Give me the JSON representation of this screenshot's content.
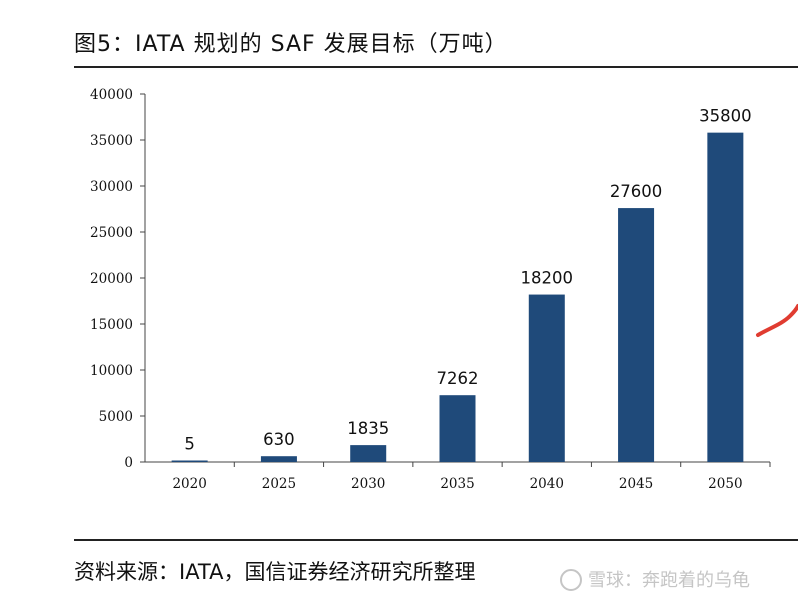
{
  "title": "图5：IATA 规划的 SAF 发展目标（万吨）",
  "source": "资料来源：IATA，国信证券经济研究所整理",
  "watermark": "雪球：奔跑着的乌龟",
  "colors": {
    "bar": "#1f4a7a",
    "annotation": "#e03c31",
    "axis": "#444444"
  },
  "chart_data": {
    "type": "bar",
    "title": "",
    "xlabel": "",
    "ylabel": "",
    "categories": [
      "2020",
      "2025",
      "2030",
      "2035",
      "2040",
      "2045",
      "2050"
    ],
    "values": [
      5,
      630,
      1835,
      7262,
      18200,
      27600,
      35800
    ],
    "data_labels": [
      "5",
      "630",
      "1835",
      "7262",
      "18200",
      "27600",
      "35800"
    ],
    "ylim": [
      0,
      40000
    ],
    "yticks": [
      0,
      5000,
      10000,
      15000,
      20000,
      25000,
      30000,
      35000,
      40000
    ],
    "grid": false,
    "legend": "none"
  }
}
